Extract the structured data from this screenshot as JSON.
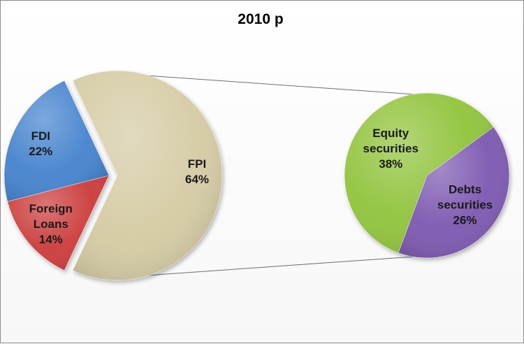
{
  "chart_data": {
    "type": "pie",
    "title": "2010 p",
    "main_pie": {
      "slices": [
        {
          "label_lines": [
            "FPI",
            "64%"
          ],
          "value": 64,
          "color": "#d6cca6",
          "exploded": true
        },
        {
          "label_lines": [
            "FDI",
            "22%"
          ],
          "value": 22,
          "color": "#4a86cf"
        },
        {
          "label_lines": [
            "Foreign",
            "Loans",
            "14%"
          ],
          "value": 14,
          "color": "#cd4140"
        }
      ]
    },
    "breakdown_pie": {
      "of_slice": "FPI",
      "slices": [
        {
          "label_lines": [
            "Equity",
            "securities",
            "38%"
          ],
          "value": 38,
          "color": "#93c540"
        },
        {
          "label_lines": [
            "Debts",
            "securities",
            "26%"
          ],
          "value": 26,
          "color": "#7f5bb2"
        }
      ]
    }
  }
}
